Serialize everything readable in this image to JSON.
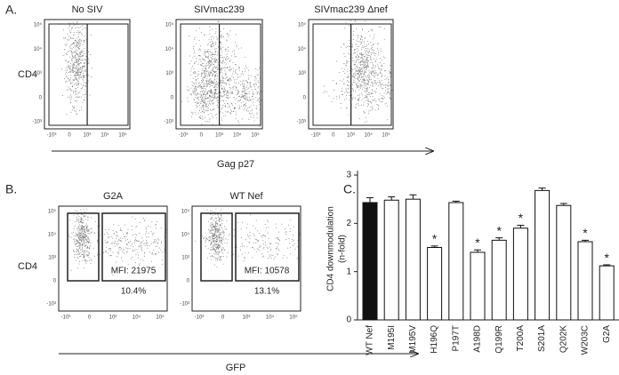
{
  "panel_a": {
    "label": "A.",
    "ylabel": "CD4",
    "xlabel": "Gag p27",
    "plots": [
      {
        "title": "No SIV"
      },
      {
        "title": "SIVmac239"
      },
      {
        "title": "SIVmac239 Δnef"
      }
    ]
  },
  "panel_b": {
    "label": "B.",
    "ylabel": "CD4",
    "xlabel": "GFP",
    "plots": [
      {
        "title": "G2A",
        "mfi": "MFI: 21975",
        "percent": "10.4%"
      },
      {
        "title": "WT Nef",
        "mfi": "MFI: 10578",
        "percent": "13.1%"
      }
    ]
  },
  "flow_ticks": {
    "y": [
      "10⁵",
      "10⁴",
      "10³",
      "0",
      "-10³"
    ],
    "x": [
      "-10³",
      "0",
      "10³",
      "10⁴",
      "10⁵"
    ]
  },
  "chart_data": {
    "type": "bar",
    "label": "C.",
    "ylabel": [
      "CD4 downmodulation",
      "(n-fold)"
    ],
    "categories": [
      "WT Nef",
      "M195I",
      "M195V",
      "H196Q",
      "P197T",
      "A198D",
      "Q199R",
      "T200A",
      "S201A",
      "Q202K",
      "W203C",
      "G2A"
    ],
    "values": [
      2.43,
      2.48,
      2.5,
      1.5,
      2.43,
      1.4,
      1.65,
      1.9,
      2.68,
      2.37,
      1.62,
      1.12
    ],
    "errors": [
      0.1,
      0.07,
      0.09,
      0.03,
      0.03,
      0.05,
      0.05,
      0.06,
      0.05,
      0.04,
      0.03,
      0.02
    ],
    "colors": [
      "#111111",
      "#ffffff",
      "#ffffff",
      "#ffffff",
      "#ffffff",
      "#ffffff",
      "#ffffff",
      "#ffffff",
      "#ffffff",
      "#ffffff",
      "#ffffff",
      "#ffffff"
    ],
    "significance": [
      null,
      null,
      null,
      "*",
      null,
      "*",
      "*",
      "*",
      null,
      null,
      "*",
      "*"
    ],
    "ylim": [
      0,
      3
    ],
    "yticks": [
      0,
      1,
      2,
      3
    ]
  }
}
